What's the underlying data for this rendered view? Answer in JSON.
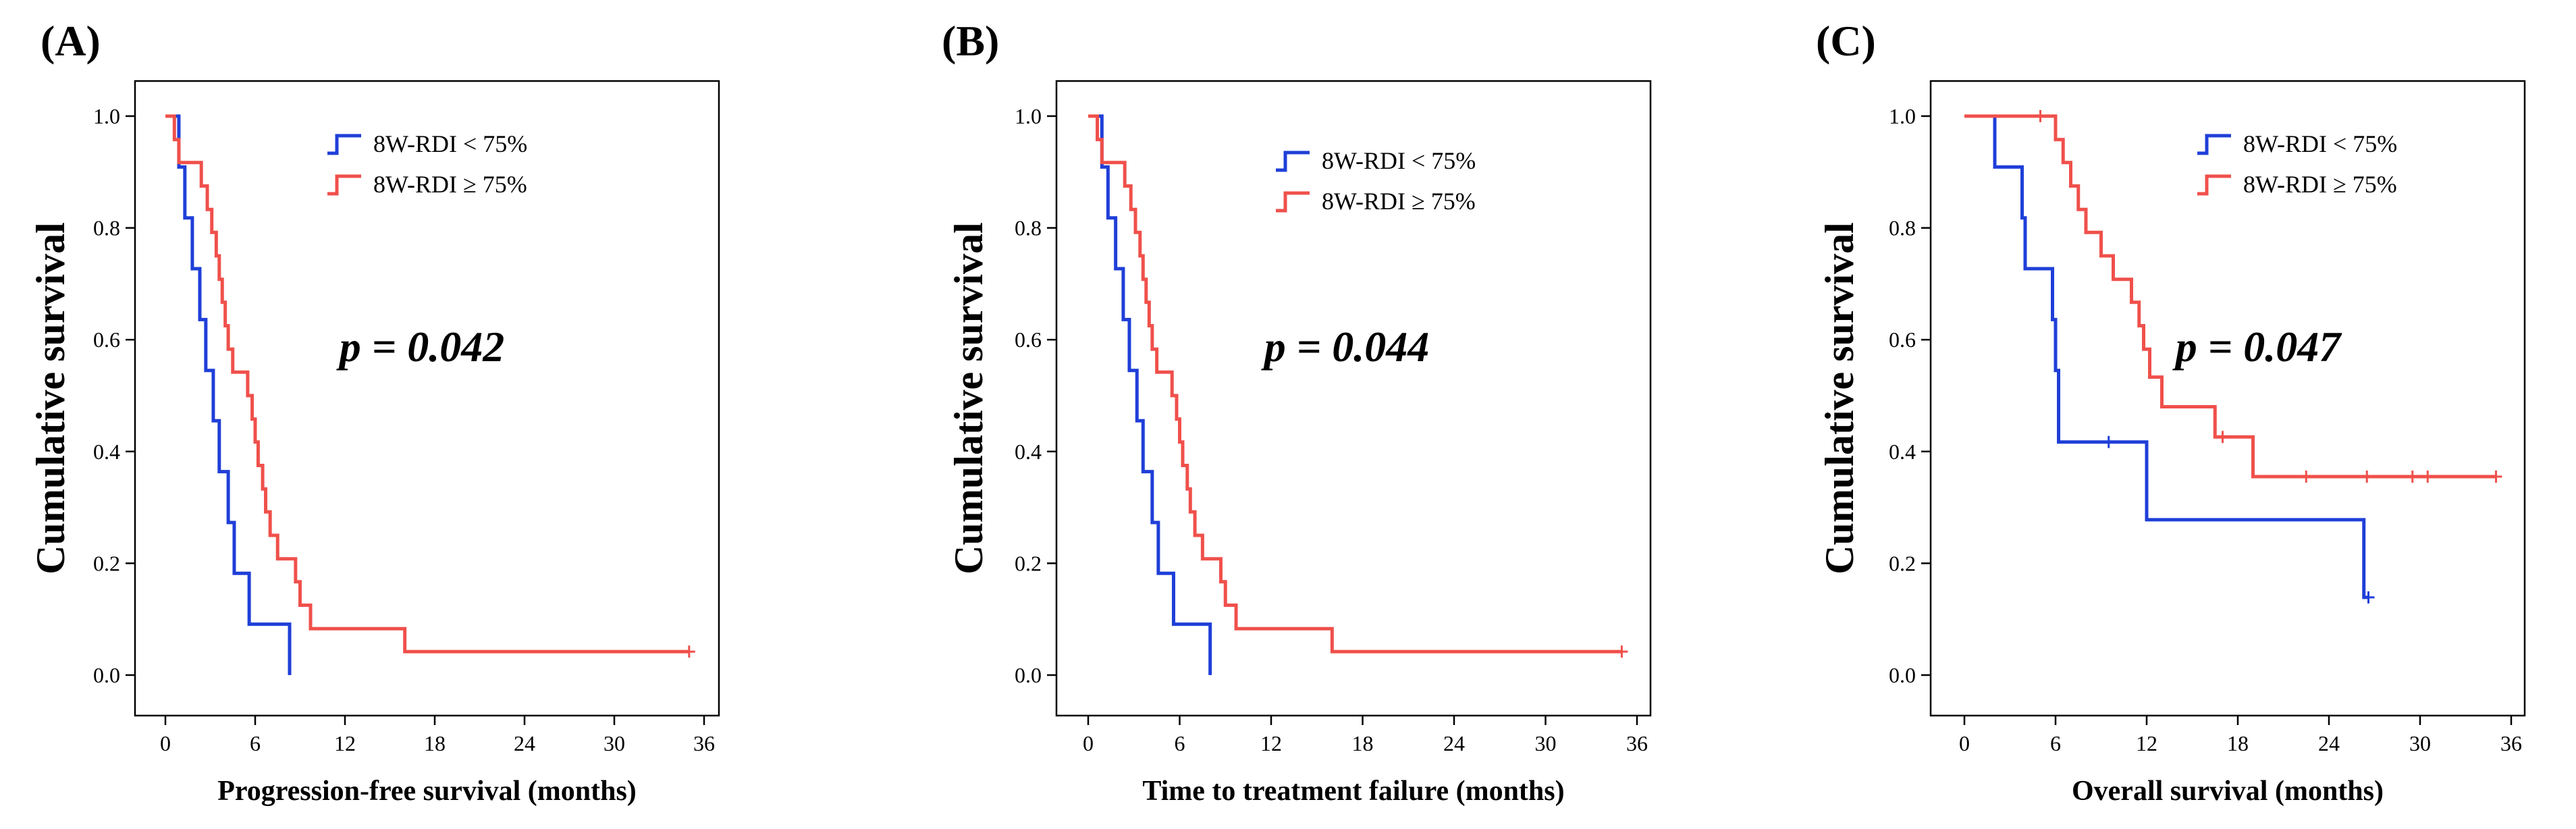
{
  "colors": {
    "group_low": "#1f3fd8",
    "group_high": "#f0504b"
  },
  "chart_data": [
    {
      "type": "line",
      "subtype": "kaplan-meier",
      "panel_label": "(A)",
      "xlabel": "Progression-free survival (months)",
      "ylabel": "Cumulative survival",
      "annotation": "p = 0.042",
      "xlim": [
        0,
        36
      ],
      "ylim": [
        0,
        1
      ],
      "xticks": [
        "0",
        "6",
        "12",
        "18",
        "24",
        "30",
        "36"
      ],
      "yticks": [
        "0.0",
        "0.2",
        "0.4",
        "0.6",
        "0.8",
        "1.0"
      ],
      "legend_position": "top-right",
      "series": [
        {
          "name": "8W-RDI < 75%",
          "color": "#1f3fd8",
          "steps": [
            [
              0,
              1.0
            ],
            [
              0.9,
              0.909
            ],
            [
              1.3,
              0.818
            ],
            [
              1.8,
              0.727
            ],
            [
              2.3,
              0.636
            ],
            [
              2.7,
              0.545
            ],
            [
              3.2,
              0.455
            ],
            [
              3.6,
              0.364
            ],
            [
              4.2,
              0.273
            ],
            [
              4.6,
              0.182
            ],
            [
              5.6,
              0.091
            ],
            [
              8.3,
              0.0
            ]
          ],
          "end": 8.3,
          "censored": []
        },
        {
          "name": "8W-RDI ≥ 75%",
          "color": "#f0504b",
          "steps": [
            [
              0,
              1.0
            ],
            [
              0.6,
              0.958
            ],
            [
              0.9,
              0.917
            ],
            [
              2.4,
              0.875
            ],
            [
              2.8,
              0.833
            ],
            [
              3.1,
              0.792
            ],
            [
              3.4,
              0.75
            ],
            [
              3.6,
              0.708
            ],
            [
              3.8,
              0.667
            ],
            [
              4.0,
              0.625
            ],
            [
              4.2,
              0.583
            ],
            [
              4.5,
              0.542
            ],
            [
              5.5,
              0.5
            ],
            [
              5.8,
              0.458
            ],
            [
              6.0,
              0.417
            ],
            [
              6.2,
              0.375
            ],
            [
              6.5,
              0.333
            ],
            [
              6.7,
              0.292
            ],
            [
              7.0,
              0.25
            ],
            [
              7.5,
              0.208
            ],
            [
              8.7,
              0.167
            ],
            [
              9.0,
              0.125
            ],
            [
              9.7,
              0.083
            ],
            [
              16.0,
              0.042
            ]
          ],
          "end": 35.0,
          "censored": [
            35.0
          ]
        }
      ]
    },
    {
      "type": "line",
      "subtype": "kaplan-meier",
      "panel_label": "(B)",
      "xlabel": "Time to treatment failure (months)",
      "ylabel": "Cumulative survival",
      "annotation": "p = 0.044",
      "xlim": [
        0,
        36
      ],
      "ylim": [
        0,
        1
      ],
      "xticks": [
        "0",
        "6",
        "12",
        "18",
        "24",
        "30",
        "36"
      ],
      "yticks": [
        "0.0",
        "0.2",
        "0.4",
        "0.6",
        "0.8",
        "1.0"
      ],
      "legend_position": "top-right",
      "series": [
        {
          "name": "8W-RDI < 75%",
          "color": "#1f3fd8",
          "steps": [
            [
              0,
              1.0
            ],
            [
              0.9,
              0.909
            ],
            [
              1.3,
              0.818
            ],
            [
              1.8,
              0.727
            ],
            [
              2.3,
              0.636
            ],
            [
              2.7,
              0.545
            ],
            [
              3.2,
              0.455
            ],
            [
              3.6,
              0.364
            ],
            [
              4.2,
              0.273
            ],
            [
              4.6,
              0.182
            ],
            [
              5.6,
              0.091
            ],
            [
              8.0,
              0.0
            ]
          ],
          "end": 8.0,
          "censored": []
        },
        {
          "name": "8W-RDI ≥ 75%",
          "color": "#f0504b",
          "steps": [
            [
              0,
              1.0
            ],
            [
              0.6,
              0.958
            ],
            [
              0.9,
              0.917
            ],
            [
              2.4,
              0.875
            ],
            [
              2.8,
              0.833
            ],
            [
              3.1,
              0.792
            ],
            [
              3.4,
              0.75
            ],
            [
              3.6,
              0.708
            ],
            [
              3.8,
              0.667
            ],
            [
              4.0,
              0.625
            ],
            [
              4.2,
              0.583
            ],
            [
              4.5,
              0.542
            ],
            [
              5.5,
              0.5
            ],
            [
              5.8,
              0.458
            ],
            [
              6.0,
              0.417
            ],
            [
              6.2,
              0.375
            ],
            [
              6.5,
              0.333
            ],
            [
              6.7,
              0.292
            ],
            [
              7.0,
              0.25
            ],
            [
              7.5,
              0.208
            ],
            [
              8.7,
              0.167
            ],
            [
              9.0,
              0.125
            ],
            [
              9.7,
              0.083
            ],
            [
              16.0,
              0.042
            ]
          ],
          "end": 35.0,
          "censored": [
            35.0
          ]
        }
      ]
    },
    {
      "type": "line",
      "subtype": "kaplan-meier",
      "panel_label": "(C)",
      "xlabel": "Overall survival (months)",
      "ylabel": "Cumulative survival",
      "annotation": "p = 0.047",
      "xlim": [
        0,
        36
      ],
      "ylim": [
        0,
        1
      ],
      "xticks": [
        "0",
        "6",
        "12",
        "18",
        "24",
        "30",
        "36"
      ],
      "yticks": [
        "0.0",
        "0.2",
        "0.4",
        "0.6",
        "0.8",
        "1.0"
      ],
      "legend_position": "top-right",
      "series": [
        {
          "name": "8W-RDI < 75%",
          "color": "#1f3fd8",
          "steps": [
            [
              0,
              1.0
            ],
            [
              2.0,
              0.909
            ],
            [
              3.8,
              0.818
            ],
            [
              4.0,
              0.727
            ],
            [
              5.8,
              0.636
            ],
            [
              6.0,
              0.545
            ],
            [
              6.2,
              0.417
            ],
            [
              12.0,
              0.278
            ],
            [
              26.3,
              0.139
            ]
          ],
          "end": 26.6,
          "censored": [
            9.5,
            26.6
          ]
        },
        {
          "name": "8W-RDI ≥ 75%",
          "color": "#f0504b",
          "steps": [
            [
              0,
              1.0
            ],
            [
              6.0,
              0.958
            ],
            [
              6.5,
              0.917
            ],
            [
              7.0,
              0.875
            ],
            [
              7.5,
              0.833
            ],
            [
              8.0,
              0.792
            ],
            [
              9.0,
              0.75
            ],
            [
              9.8,
              0.708
            ],
            [
              11.0,
              0.667
            ],
            [
              11.5,
              0.625
            ],
            [
              11.8,
              0.583
            ],
            [
              12.2,
              0.533
            ],
            [
              13.0,
              0.48
            ],
            [
              16.5,
              0.426
            ],
            [
              19.0,
              0.355
            ]
          ],
          "end": 35.0,
          "censored": [
            5.0,
            17.0,
            22.5,
            26.5,
            29.5,
            30.5,
            35.0
          ]
        }
      ]
    }
  ]
}
